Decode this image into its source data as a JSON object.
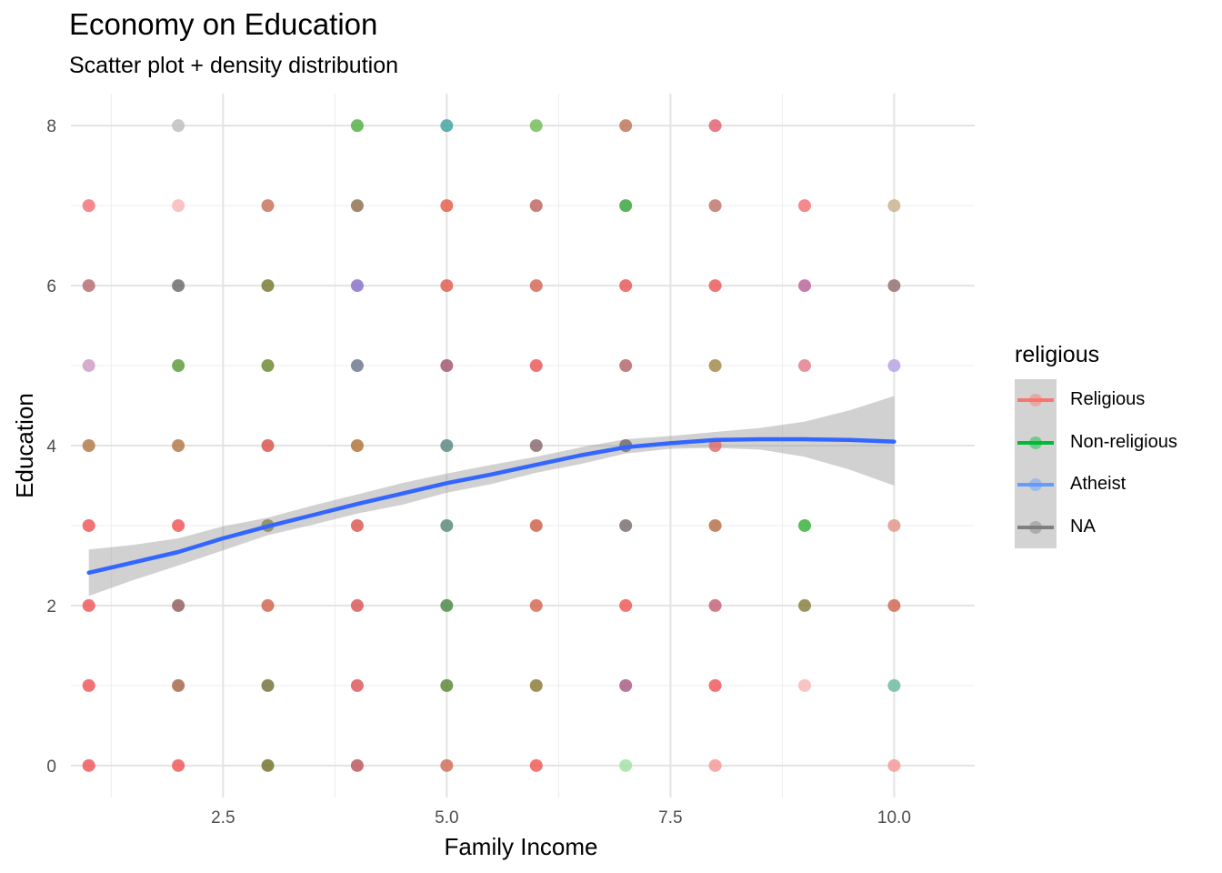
{
  "chart_data": {
    "type": "scatter",
    "title": "Economy on Education",
    "subtitle": "Scatter plot + density distribution",
    "xlabel": "Family Income",
    "ylabel": "Education",
    "xlim": [
      0.8,
      10.9
    ],
    "ylim": [
      -0.4,
      8.4
    ],
    "x_ticks": [
      2.5,
      5.0,
      7.5,
      10.0
    ],
    "x_tick_labels": [
      "2.5",
      "5.0",
      "7.5",
      "10.0"
    ],
    "y_ticks": [
      0,
      2,
      4,
      6,
      8
    ],
    "y_tick_labels": [
      "0",
      "2",
      "4",
      "6",
      "8"
    ],
    "grid": true,
    "legend": {
      "title": "religious",
      "placement": "right",
      "items": [
        {
          "label": "Religious",
          "color": "#F8766D"
        },
        {
          "label": "Non-religious",
          "color": "#00BA38"
        },
        {
          "label": "Atheist",
          "color": "#619CFF"
        },
        {
          "label": "NA",
          "color": "#7F7F7F"
        }
      ]
    },
    "points": [
      {
        "x": 1,
        "y": 7,
        "color": "#F5747A"
      },
      {
        "x": 1,
        "y": 6,
        "color": "#B76E72"
      },
      {
        "x": 1,
        "y": 5,
        "color": "#CF9FC8"
      },
      {
        "x": 1,
        "y": 4,
        "color": "#B47B4B"
      },
      {
        "x": 1,
        "y": 3,
        "color": "#EE5A5A"
      },
      {
        "x": 1,
        "y": 2,
        "color": "#EE5A5A"
      },
      {
        "x": 1,
        "y": 1,
        "color": "#EE5A5A"
      },
      {
        "x": 1,
        "y": 0,
        "color": "#EE5A5A"
      },
      {
        "x": 2,
        "y": 8,
        "color": "#C0C0C0"
      },
      {
        "x": 2,
        "y": 7,
        "color": "#F8BABA"
      },
      {
        "x": 2,
        "y": 6,
        "color": "#6D6D70"
      },
      {
        "x": 2,
        "y": 5,
        "color": "#5F9E3F"
      },
      {
        "x": 2,
        "y": 4,
        "color": "#B47B4B"
      },
      {
        "x": 2,
        "y": 3,
        "color": "#EE5A5A"
      },
      {
        "x": 2,
        "y": 2,
        "color": "#946060"
      },
      {
        "x": 2,
        "y": 1,
        "color": "#A7694C"
      },
      {
        "x": 2,
        "y": 0,
        "color": "#EE5A5A"
      },
      {
        "x": 3,
        "y": 7,
        "color": "#C7765E"
      },
      {
        "x": 3,
        "y": 6,
        "color": "#7A7B35"
      },
      {
        "x": 3,
        "y": 5,
        "color": "#6E8B36"
      },
      {
        "x": 3,
        "y": 4,
        "color": "#D9574F"
      },
      {
        "x": 3,
        "y": 3,
        "color": "#8A8A5A"
      },
      {
        "x": 3,
        "y": 2,
        "color": "#D26652"
      },
      {
        "x": 3,
        "y": 1,
        "color": "#767540"
      },
      {
        "x": 3,
        "y": 0,
        "color": "#767530"
      },
      {
        "x": 4,
        "y": 8,
        "color": "#57B049"
      },
      {
        "x": 4,
        "y": 7,
        "color": "#8F7450"
      },
      {
        "x": 4,
        "y": 6,
        "color": "#8A73C8"
      },
      {
        "x": 4,
        "y": 5,
        "color": "#6F7A8F"
      },
      {
        "x": 4,
        "y": 4,
        "color": "#B2763D"
      },
      {
        "x": 4,
        "y": 3,
        "color": "#DD5B53"
      },
      {
        "x": 4,
        "y": 2,
        "color": "#D9595A"
      },
      {
        "x": 4,
        "y": 1,
        "color": "#DD5B5F"
      },
      {
        "x": 4,
        "y": 0,
        "color": "#BD5962"
      },
      {
        "x": 5,
        "y": 8,
        "color": "#46A5A3"
      },
      {
        "x": 5,
        "y": 7,
        "color": "#E3614B"
      },
      {
        "x": 5,
        "y": 6,
        "color": "#E06050"
      },
      {
        "x": 5,
        "y": 5,
        "color": "#A35872"
      },
      {
        "x": 5,
        "y": 4,
        "color": "#5C8C86"
      },
      {
        "x": 5,
        "y": 3,
        "color": "#5C8C7E"
      },
      {
        "x": 5,
        "y": 2,
        "color": "#4C8C46"
      },
      {
        "x": 5,
        "y": 1,
        "color": "#5D8A3A"
      },
      {
        "x": 5,
        "y": 0,
        "color": "#D1705C"
      },
      {
        "x": 6,
        "y": 8,
        "color": "#77BD5C"
      },
      {
        "x": 6,
        "y": 7,
        "color": "#C06A64"
      },
      {
        "x": 6,
        "y": 6,
        "color": "#D56A5A"
      },
      {
        "x": 6,
        "y": 5,
        "color": "#EA5C5C"
      },
      {
        "x": 6,
        "y": 4,
        "color": "#8C6C70"
      },
      {
        "x": 6,
        "y": 3,
        "color": "#D0644F"
      },
      {
        "x": 6,
        "y": 2,
        "color": "#D86A56"
      },
      {
        "x": 6,
        "y": 1,
        "color": "#8E7C39"
      },
      {
        "x": 6,
        "y": 0,
        "color": "#F25A5A"
      },
      {
        "x": 7,
        "y": 8,
        "color": "#C1775E"
      },
      {
        "x": 7,
        "y": 7,
        "color": "#3CA63E"
      },
      {
        "x": 7,
        "y": 6,
        "color": "#E85B5B"
      },
      {
        "x": 7,
        "y": 5,
        "color": "#B66A6A"
      },
      {
        "x": 7,
        "y": 4,
        "color": "#767070"
      },
      {
        "x": 7,
        "y": 3,
        "color": "#7B7171"
      },
      {
        "x": 7,
        "y": 2,
        "color": "#EE5A5A"
      },
      {
        "x": 7,
        "y": 1,
        "color": "#A85E86"
      },
      {
        "x": 7,
        "y": 0,
        "color": "#A6E0A6"
      },
      {
        "x": 8,
        "y": 8,
        "color": "#E46473"
      },
      {
        "x": 8,
        "y": 7,
        "color": "#BE786E"
      },
      {
        "x": 8,
        "y": 6,
        "color": "#EC5D5D"
      },
      {
        "x": 8,
        "y": 5,
        "color": "#A58A4C"
      },
      {
        "x": 8,
        "y": 4,
        "color": "#DE7070"
      },
      {
        "x": 8,
        "y": 3,
        "color": "#B9724A"
      },
      {
        "x": 8,
        "y": 2,
        "color": "#C7647A"
      },
      {
        "x": 8,
        "y": 1,
        "color": "#EE5A5A"
      },
      {
        "x": 8,
        "y": 0,
        "color": "#F39A9A"
      },
      {
        "x": 9,
        "y": 7,
        "color": "#F5747A"
      },
      {
        "x": 9,
        "y": 6,
        "color": "#BB679B"
      },
      {
        "x": 9,
        "y": 5,
        "color": "#E0818E"
      },
      {
        "x": 9,
        "y": 3,
        "color": "#3CB23C"
      },
      {
        "x": 9,
        "y": 2,
        "color": "#8A8140"
      },
      {
        "x": 9,
        "y": 1,
        "color": "#F8BABA"
      },
      {
        "x": 10,
        "y": 7,
        "color": "#C9B48E"
      },
      {
        "x": 10,
        "y": 6,
        "color": "#957171"
      },
      {
        "x": 10,
        "y": 5,
        "color": "#B8A4E0"
      },
      {
        "x": 10,
        "y": 3,
        "color": "#E2998A"
      },
      {
        "x": 10,
        "y": 2,
        "color": "#D06A56"
      },
      {
        "x": 10,
        "y": 1,
        "color": "#6FBBA2"
      },
      {
        "x": 10,
        "y": 0,
        "color": "#F39A9A"
      }
    ],
    "smooth": {
      "color": "#3366FF",
      "band_color": "#999999",
      "x": [
        1.0,
        1.5,
        2.0,
        2.5,
        3.0,
        3.5,
        4.0,
        4.5,
        5.0,
        5.5,
        6.0,
        6.5,
        7.0,
        7.5,
        8.0,
        8.5,
        9.0,
        9.5,
        10.0
      ],
      "y": [
        2.41,
        2.54,
        2.67,
        2.84,
        2.99,
        3.13,
        3.27,
        3.4,
        3.53,
        3.64,
        3.76,
        3.88,
        3.98,
        4.03,
        4.07,
        4.08,
        4.08,
        4.07,
        4.05
      ],
      "lower": [
        2.12,
        2.32,
        2.5,
        2.69,
        2.88,
        3.01,
        3.15,
        3.26,
        3.41,
        3.52,
        3.66,
        3.77,
        3.9,
        3.96,
        3.97,
        3.95,
        3.86,
        3.7,
        3.5
      ],
      "upper": [
        2.7,
        2.76,
        2.84,
        2.99,
        3.1,
        3.25,
        3.39,
        3.53,
        3.65,
        3.76,
        3.86,
        3.98,
        4.08,
        4.12,
        4.17,
        4.22,
        4.3,
        4.44,
        4.62
      ]
    }
  }
}
